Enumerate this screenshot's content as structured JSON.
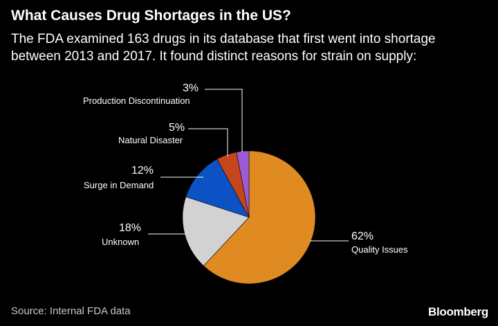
{
  "header": {
    "title": "What Causes Drug Shortages in the US?",
    "subtitle": "The FDA examined 163 drugs in its database that first went into shortage between 2013 and 2017. It found distinct reasons for strain on supply:"
  },
  "footer": {
    "source": "Source: Internal FDA data",
    "brand": "Bloomberg"
  },
  "chart_data": {
    "type": "pie",
    "title": "What Causes Drug Shortages in the US?",
    "slices": [
      {
        "label": "Quality Issues",
        "value": 62,
        "value_label": "62%",
        "color": "#e08a22"
      },
      {
        "label": "Unknown",
        "value": 18,
        "value_label": "18%",
        "color": "#d2d2d2"
      },
      {
        "label": "Surge in Demand",
        "value": 12,
        "value_label": "12%",
        "color": "#0c52c4"
      },
      {
        "label": "Natural Disaster",
        "value": 5,
        "value_label": "5%",
        "color": "#c4461c"
      },
      {
        "label": "Production Discontinuation",
        "value": 3,
        "value_label": "3%",
        "color": "#9c5bd6"
      }
    ],
    "direction": "clockwise from top"
  }
}
